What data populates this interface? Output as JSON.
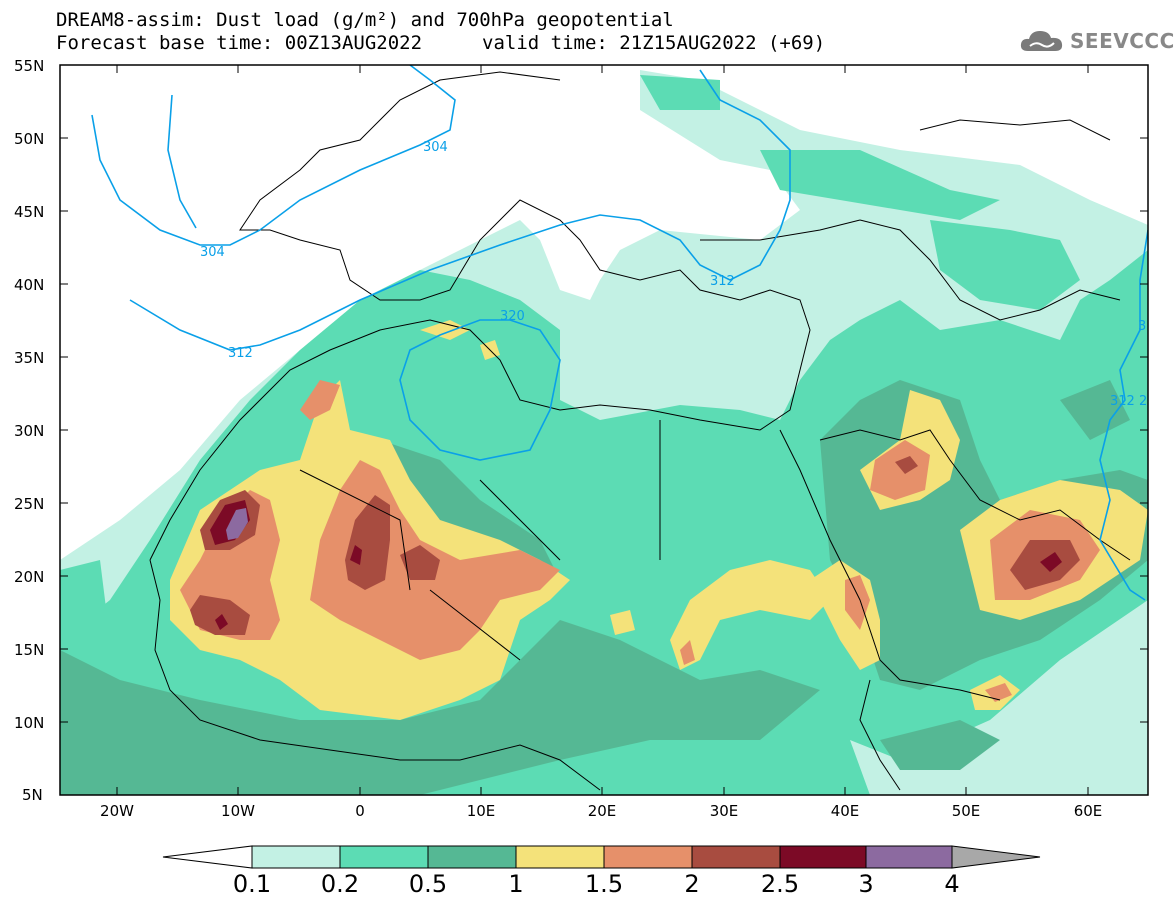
{
  "header": {
    "title_line1": "DREAM8-assim: Dust load (g/m²) and 700hPa geopotential",
    "title_line2_left": "Forecast base time: 00Z13AUG2022",
    "title_line2_right": "valid time: 21Z15AUG2022 (+69)",
    "logo_text": "SEEVCCC",
    "logo_icon": "cloud-icon"
  },
  "axes": {
    "lat_labels": [
      "55N",
      "50N",
      "45N",
      "40N",
      "35N",
      "30N",
      "25N",
      "20N",
      "15N",
      "10N",
      "5N"
    ],
    "lon_labels": [
      "20W",
      "10W",
      "0",
      "10E",
      "20E",
      "30E",
      "40E",
      "50E",
      "60E"
    ]
  },
  "contour_labels": [
    "304",
    "304",
    "312",
    "312",
    "320",
    "312 2",
    "3"
  ],
  "colorbar": {
    "labels": [
      "0.1",
      "0.2",
      "0.5",
      "1",
      "1.5",
      "2",
      "2.5",
      "3",
      "4"
    ],
    "colors": [
      "#ffffff",
      "#c3f1e4",
      "#5cdcb4",
      "#55b894",
      "#f4e27a",
      "#e6906a",
      "#a84c40",
      "#7c0a26",
      "#8c6aa0",
      "#a8a8a8"
    ]
  },
  "colors": {
    "geopotential_contour": "#0aa0e8",
    "coastline": "#000000"
  }
}
